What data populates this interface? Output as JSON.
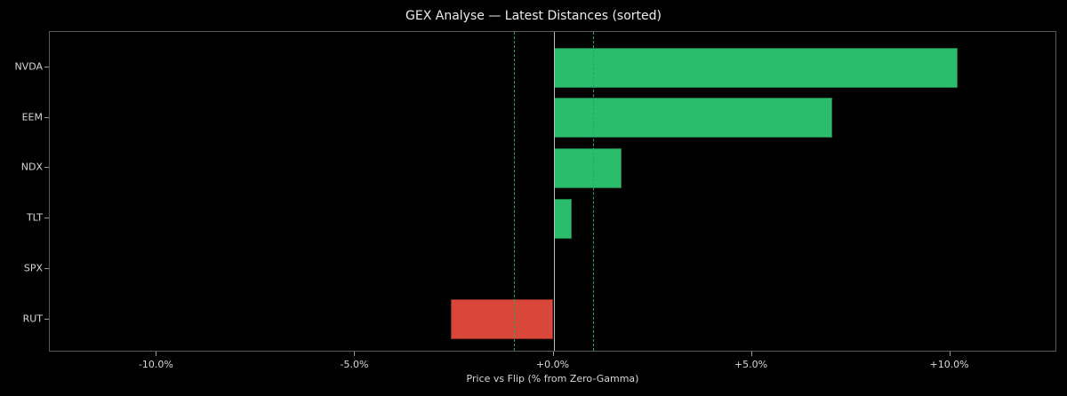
{
  "chart_data": {
    "type": "bar",
    "orientation": "horizontal",
    "title": "GEX Analyse — Latest Distances (sorted)",
    "xlabel": "Price vs Flip (% from Zero-Gamma)",
    "ylabel": "",
    "categories": [
      "NVDA",
      "EEM",
      "NDX",
      "TLT",
      "SPX",
      "RUT"
    ],
    "values": [
      10.18,
      7.03,
      1.71,
      0.45,
      0.0,
      -2.58
    ],
    "colors": [
      "#2bbd6b",
      "#2bbd6b",
      "#2bbd6b",
      "#2bbd6b",
      "#2bbd6b",
      "#d9473a"
    ],
    "xlim": [
      -12.7,
      12.7
    ],
    "xticks": [
      -10,
      -5,
      0,
      5,
      10
    ],
    "xtick_labels": [
      "-10.0%",
      "-5.0%",
      "+0.0%",
      "+5.0%",
      "+10.0%"
    ],
    "reference_lines": [
      {
        "x": 0,
        "style": "solid",
        "color": "#bdbdbd"
      },
      {
        "x": -1.0,
        "style": "dashed",
        "color": "#1faa64"
      },
      {
        "x": 1.0,
        "style": "dashed",
        "color": "#1faa64"
      }
    ],
    "grid": false,
    "legend": null,
    "background": "#000000"
  }
}
